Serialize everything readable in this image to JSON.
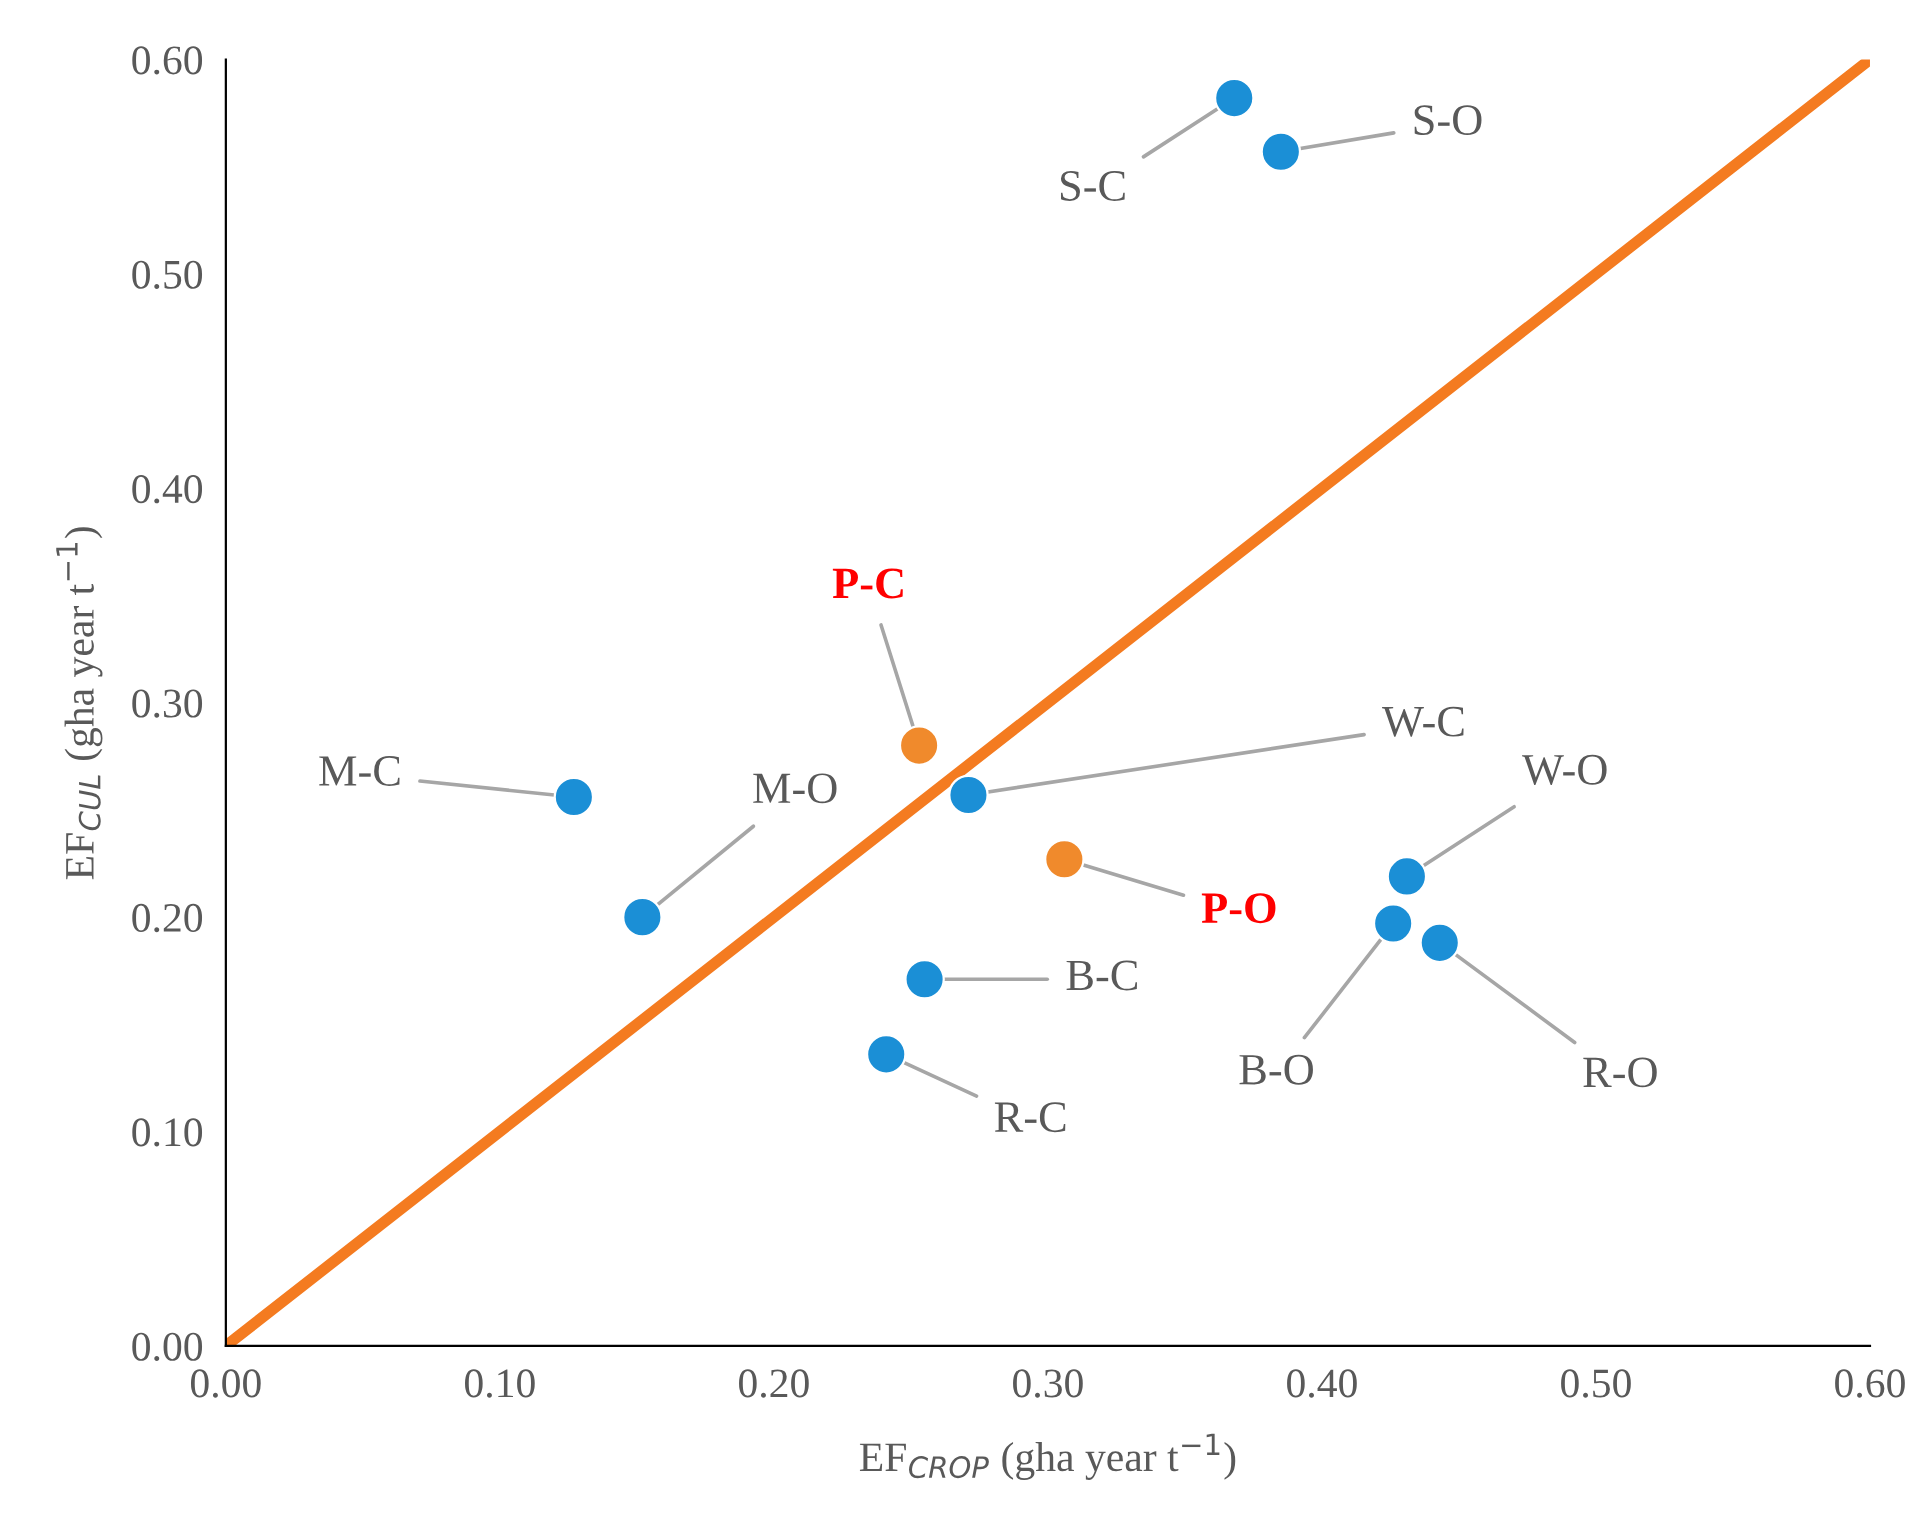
{
  "chart_data": {
    "type": "scatter",
    "xlabel": "EF$_{CROP}$ (gha year t$^{−1}$)",
    "ylabel": "EF$_{CUL}$ (gha year t$^{−1}$)",
    "xlim": [
      0,
      0.6
    ],
    "ylim": [
      0,
      0.6
    ],
    "xticks": [
      {
        "value": 0,
        "label": "0.00"
      },
      {
        "value": 0.1,
        "label": "0.10"
      },
      {
        "value": 0.2,
        "label": "0.20"
      },
      {
        "value": 0.3,
        "label": "0.30"
      },
      {
        "value": 0.4,
        "label": "0.40"
      },
      {
        "value": 0.5,
        "label": "0.50"
      },
      {
        "value": 0.6,
        "label": "0.60"
      }
    ],
    "yticks": [
      {
        "value": 0,
        "label": "0.00"
      },
      {
        "value": 0.1,
        "label": "0.10"
      },
      {
        "value": 0.2,
        "label": "0.20"
      },
      {
        "value": 0.3,
        "label": "0.30"
      },
      {
        "value": 0.4,
        "label": "0.40"
      },
      {
        "value": 0.5,
        "label": "0.50"
      },
      {
        "value": 0.6,
        "label": "0.60"
      }
    ],
    "grid": false,
    "legend": false,
    "marker": "circle",
    "series": [
      {
        "type": "line",
        "marker": "none",
        "color": "#f47b20",
        "x": [
          0,
          0.6
        ],
        "values": [
          0,
          0.6
        ]
      },
      {
        "color": "#1b8fd6",
        "x": [
          0.368,
          0.385,
          0.271,
          0.127,
          0.152,
          0.255,
          0.241,
          0.431,
          0.426,
          0.443
        ],
        "values": [
          0.582,
          0.557,
          0.257,
          0.256,
          0.2,
          0.171,
          0.136,
          0.219,
          0.197,
          0.188
        ]
      },
      {
        "color": "#f08a2c",
        "x": [
          0.253,
          0.306
        ],
        "values": [
          0.28,
          0.227
        ]
      }
    ],
    "annotations": [
      {
        "text": "S-C",
        "x": 0.368,
        "y": 0.582
      },
      {
        "text": "S-O",
        "x": 0.385,
        "y": 0.557
      },
      {
        "text": "P-C",
        "x": 0.253,
        "y": 0.28
      },
      {
        "text": "W-C",
        "x": 0.271,
        "y": 0.257
      },
      {
        "text": "M-C",
        "x": 0.127,
        "y": 0.256
      },
      {
        "text": "M-O",
        "x": 0.152,
        "y": 0.2
      },
      {
        "text": "P-O",
        "x": 0.306,
        "y": 0.227
      },
      {
        "text": "B-C",
        "x": 0.255,
        "y": 0.171
      },
      {
        "text": "R-C",
        "x": 0.241,
        "y": 0.136
      },
      {
        "text": "W-O",
        "x": 0.431,
        "y": 0.219
      },
      {
        "text": "B-O",
        "x": 0.426,
        "y": 0.197
      },
      {
        "text": "R-O",
        "x": 0.443,
        "y": 0.188
      }
    ]
  }
}
